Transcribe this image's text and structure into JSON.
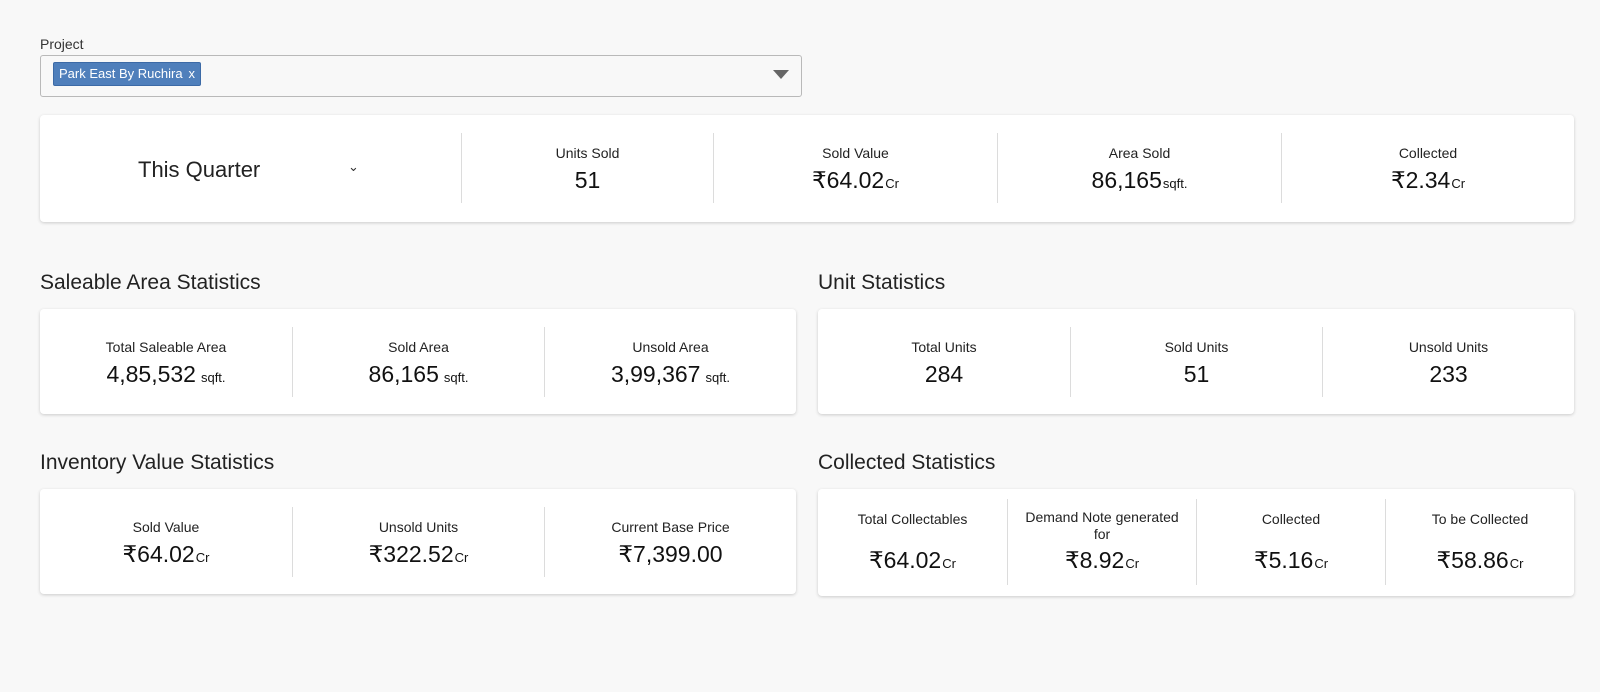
{
  "project": {
    "label": "Project",
    "selected_chip": "Park East By Ruchira",
    "chip_remove": "x"
  },
  "summary": {
    "period": "This Quarter",
    "period_chevron": "⌄",
    "metrics": [
      {
        "label": "Units Sold",
        "value": "51",
        "unit": ""
      },
      {
        "label": "Sold Value",
        "value": "₹64.02",
        "unit": "Cr"
      },
      {
        "label": "Area Sold",
        "value": "86,165",
        "unit": "sqft."
      },
      {
        "label": "Collected",
        "value": "₹2.34",
        "unit": "Cr"
      }
    ]
  },
  "saleable_area": {
    "title": "Saleable Area Statistics",
    "items": [
      {
        "label": "Total Saleable Area",
        "value": "4,85,532",
        "unit": "sqft."
      },
      {
        "label": "Sold Area",
        "value": "86,165",
        "unit": "sqft."
      },
      {
        "label": "Unsold Area",
        "value": "3,99,367",
        "unit": "sqft."
      }
    ]
  },
  "unit_stats": {
    "title": "Unit Statistics",
    "items": [
      {
        "label": "Total Units",
        "value": "284"
      },
      {
        "label": "Sold Units",
        "value": "51"
      },
      {
        "label": "Unsold Units",
        "value": "233"
      }
    ]
  },
  "inventory_value": {
    "title": "Inventory Value Statistics",
    "items": [
      {
        "label": "Sold Value",
        "value": "₹64.02",
        "unit": "Cr"
      },
      {
        "label": "Unsold Units",
        "value": "₹322.52",
        "unit": "Cr"
      },
      {
        "label": "Current Base Price",
        "value": "₹7,399.00",
        "unit": ""
      }
    ]
  },
  "collected_stats": {
    "title": "Collected Statistics",
    "items": [
      {
        "label": "Total Collectables",
        "value": "₹64.02",
        "unit": "Cr"
      },
      {
        "label": "Demand Note generated for",
        "value": "₹8.92",
        "unit": "Cr"
      },
      {
        "label": "Collected",
        "value": "₹5.16",
        "unit": "Cr"
      },
      {
        "label": "To be Collected",
        "value": "₹58.86",
        "unit": "Cr"
      }
    ]
  },
  "colors": {
    "chip_bg": "#4f7fbb",
    "page_bg": "#f8f8f8",
    "card_bg": "#ffffff"
  }
}
